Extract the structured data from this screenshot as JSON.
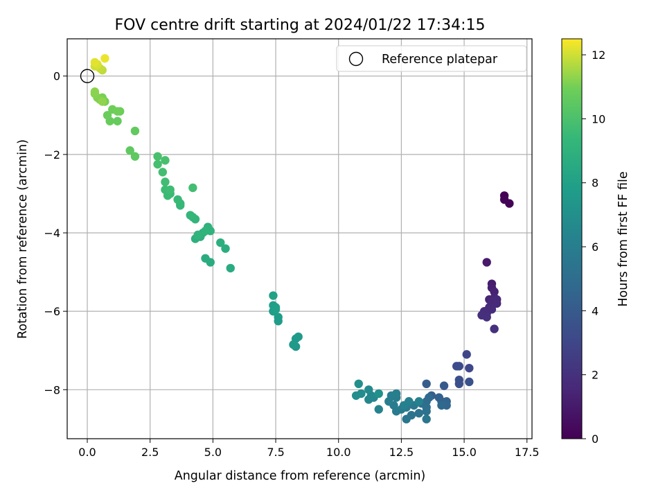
{
  "chart_data": {
    "type": "scatter",
    "title": "FOV centre drift starting at 2024/01/22 17:34:15",
    "xlabel": "Angular distance from reference (arcmin)",
    "ylabel": "Rotation from reference (arcmin)",
    "xlim": [
      -0.8,
      17.7
    ],
    "ylim": [
      -9.25,
      0.95
    ],
    "xticks": [
      "0.0",
      "2.5",
      "5.0",
      "7.5",
      "10.0",
      "12.5",
      "15.0",
      "17.5"
    ],
    "xtick_values": [
      0,
      2.5,
      5,
      7.5,
      10,
      12.5,
      15,
      17.5
    ],
    "yticks": [
      "0",
      "−2",
      "−4",
      "−6",
      "−8"
    ],
    "ytick_values": [
      0,
      -2,
      -4,
      -6,
      -8
    ],
    "grid": true,
    "legend": {
      "position": "top-right",
      "entries": [
        "Reference platepar"
      ]
    },
    "colormap": "viridis",
    "colorbar": {
      "label": "Hours from first FF file",
      "range": [
        0,
        12.5
      ],
      "ticks": [
        "0",
        "2",
        "4",
        "6",
        "8",
        "10",
        "12"
      ],
      "tick_values": [
        0,
        2,
        4,
        6,
        8,
        10,
        12
      ]
    },
    "reference_point": {
      "x": 0,
      "y": 0,
      "name": "Reference platepar"
    },
    "points": [
      [
        16.6,
        -3.05,
        0.05
      ],
      [
        16.8,
        -3.25,
        0.1
      ],
      [
        16.6,
        -3.15,
        0.15
      ],
      [
        15.9,
        -4.75,
        1.0
      ],
      [
        16.1,
        -5.3,
        1.1
      ],
      [
        16.1,
        -5.4,
        1.2
      ],
      [
        16.2,
        -5.5,
        1.3
      ],
      [
        16.0,
        -5.7,
        1.4
      ],
      [
        16.2,
        -5.65,
        1.5
      ],
      [
        16.3,
        -5.7,
        1.55
      ],
      [
        16.1,
        -5.75,
        1.6
      ],
      [
        16.3,
        -5.8,
        1.65
      ],
      [
        16.0,
        -5.9,
        1.7
      ],
      [
        16.1,
        -5.95,
        1.75
      ],
      [
        15.8,
        -6.0,
        1.8
      ],
      [
        15.9,
        -6.05,
        1.85
      ],
      [
        15.7,
        -6.1,
        1.9
      ],
      [
        15.9,
        -6.15,
        1.95
      ],
      [
        16.2,
        -6.45,
        2.0
      ],
      [
        15.1,
        -7.1,
        3.0
      ],
      [
        15.2,
        -7.45,
        3.1
      ],
      [
        14.8,
        -7.4,
        3.2
      ],
      [
        14.7,
        -7.4,
        3.3
      ],
      [
        14.8,
        -7.75,
        3.4
      ],
      [
        14.8,
        -7.85,
        3.5
      ],
      [
        15.2,
        -7.8,
        3.6
      ],
      [
        14.2,
        -7.9,
        4.0
      ],
      [
        13.5,
        -7.85,
        4.1
      ],
      [
        13.7,
        -8.15,
        4.2
      ],
      [
        14.0,
        -8.2,
        4.3
      ],
      [
        14.1,
        -8.3,
        4.4
      ],
      [
        14.3,
        -8.3,
        4.5
      ],
      [
        14.3,
        -8.4,
        4.6
      ],
      [
        14.1,
        -8.4,
        4.7
      ],
      [
        13.6,
        -8.2,
        4.8
      ],
      [
        13.5,
        -8.3,
        4.9
      ],
      [
        13.3,
        -8.35,
        5.0
      ],
      [
        13.5,
        -8.45,
        5.1
      ],
      [
        13.5,
        -8.55,
        5.2
      ],
      [
        13.2,
        -8.6,
        5.3
      ],
      [
        12.9,
        -8.65,
        5.4
      ],
      [
        12.7,
        -8.75,
        5.5
      ],
      [
        13.5,
        -8.75,
        5.55
      ],
      [
        13.0,
        -8.4,
        5.6
      ],
      [
        12.8,
        -8.3,
        5.65
      ],
      [
        12.7,
        -8.45,
        5.7
      ],
      [
        12.5,
        -8.5,
        5.75
      ],
      [
        12.3,
        -8.55,
        5.8
      ],
      [
        12.2,
        -8.4,
        5.85
      ],
      [
        12.3,
        -8.2,
        5.9
      ],
      [
        12.0,
        -8.3,
        5.95
      ],
      [
        12.1,
        -8.15,
        6.0
      ],
      [
        12.3,
        -8.1,
        6.05
      ],
      [
        12.6,
        -8.4,
        6.1
      ],
      [
        12.8,
        -8.3,
        6.15
      ],
      [
        13.2,
        -8.3,
        6.2
      ],
      [
        11.6,
        -8.5,
        6.3
      ],
      [
        11.3,
        -8.15,
        6.4
      ],
      [
        11.2,
        -8.25,
        6.5
      ],
      [
        11.4,
        -8.2,
        6.6
      ],
      [
        11.2,
        -8.0,
        6.7
      ],
      [
        10.9,
        -8.1,
        6.8
      ],
      [
        10.7,
        -8.15,
        6.9
      ],
      [
        10.8,
        -7.85,
        7.0
      ],
      [
        11.6,
        -8.1,
        7.05
      ],
      [
        8.3,
        -6.9,
        7.5
      ],
      [
        8.3,
        -6.7,
        7.55
      ],
      [
        8.4,
        -6.65,
        7.6
      ],
      [
        8.2,
        -6.85,
        7.65
      ],
      [
        7.6,
        -6.25,
        7.7
      ],
      [
        7.6,
        -6.15,
        7.75
      ],
      [
        7.4,
        -6.0,
        7.8
      ],
      [
        7.5,
        -5.9,
        7.85
      ],
      [
        7.4,
        -5.85,
        7.9
      ],
      [
        7.5,
        -5.95,
        7.95
      ],
      [
        7.4,
        -5.6,
        8.0
      ],
      [
        5.7,
        -4.9,
        8.6
      ],
      [
        4.9,
        -4.75,
        8.65
      ],
      [
        4.7,
        -4.65,
        8.7
      ],
      [
        5.5,
        -4.4,
        8.75
      ],
      [
        5.3,
        -4.25,
        8.8
      ],
      [
        4.5,
        -4.1,
        8.85
      ],
      [
        4.3,
        -4.15,
        8.9
      ],
      [
        4.6,
        -4.0,
        8.95
      ],
      [
        4.8,
        -3.85,
        9.0
      ],
      [
        4.9,
        -3.95,
        9.05
      ],
      [
        4.7,
        -3.95,
        9.1
      ],
      [
        4.4,
        -4.05,
        9.15
      ],
      [
        4.3,
        -3.65,
        9.2
      ],
      [
        4.2,
        -3.6,
        9.25
      ],
      [
        4.1,
        -3.55,
        9.3
      ],
      [
        3.7,
        -3.3,
        9.35
      ],
      [
        3.7,
        -3.25,
        9.4
      ],
      [
        3.6,
        -3.15,
        9.45
      ],
      [
        3.3,
        -3.0,
        9.5
      ],
      [
        3.2,
        -3.05,
        9.55
      ],
      [
        3.1,
        -2.9,
        9.6
      ],
      [
        3.3,
        -2.9,
        9.65
      ],
      [
        3.1,
        -2.7,
        9.7
      ],
      [
        4.2,
        -2.85,
        9.75
      ],
      [
        3.0,
        -2.45,
        9.8
      ],
      [
        2.8,
        -2.25,
        9.85
      ],
      [
        3.1,
        -2.15,
        9.9
      ],
      [
        2.8,
        -2.05,
        9.95
      ],
      [
        1.9,
        -2.05,
        10.5
      ],
      [
        1.7,
        -1.9,
        10.55
      ],
      [
        1.9,
        -1.4,
        10.6
      ],
      [
        1.2,
        -1.15,
        10.7
      ],
      [
        0.9,
        -1.15,
        10.75
      ],
      [
        0.8,
        -1.0,
        10.8
      ],
      [
        1.3,
        -0.9,
        10.85
      ],
      [
        1.0,
        -0.85,
        10.9
      ],
      [
        1.2,
        -0.9,
        10.95
      ],
      [
        0.7,
        -0.65,
        11.0
      ],
      [
        0.6,
        -0.55,
        11.05
      ],
      [
        0.5,
        -0.6,
        11.1
      ],
      [
        0.4,
        -0.55,
        11.15
      ],
      [
        0.3,
        -0.45,
        11.2
      ],
      [
        0.3,
        -0.4,
        11.25
      ],
      [
        0.6,
        -0.65,
        11.3
      ],
      [
        0.6,
        0.15,
        11.8
      ],
      [
        0.5,
        0.2,
        11.9
      ],
      [
        0.3,
        0.25,
        12.0
      ],
      [
        0.4,
        0.3,
        12.1
      ],
      [
        0.3,
        0.35,
        12.2
      ],
      [
        0.7,
        0.45,
        12.3
      ]
    ]
  }
}
